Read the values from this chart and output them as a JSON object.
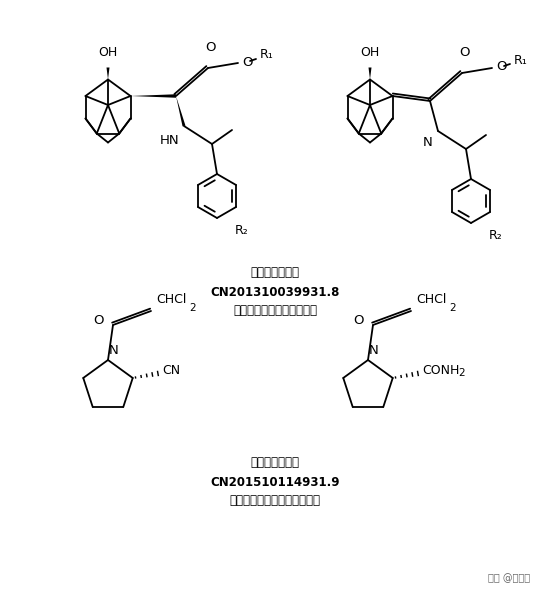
{
  "bg_color": "#ffffff",
  "fig_width": 5.5,
  "fig_height": 6.01,
  "dpi": 100,
  "top_label1": "沙格列汀中间体",
  "top_label2": "CN201310039931.8",
  "top_label3": "上海现代制药股份有限公司",
  "bot_label1": "维格列汀中间体",
  "bot_label2": "CN201510114931.9",
  "bot_label3": "宁波百思佳医药科技有限公司",
  "watermark": "头条 @药智网",
  "label_fontsize": 8.5,
  "bold_fontsize": 8.5,
  "watermark_fontsize": 7
}
